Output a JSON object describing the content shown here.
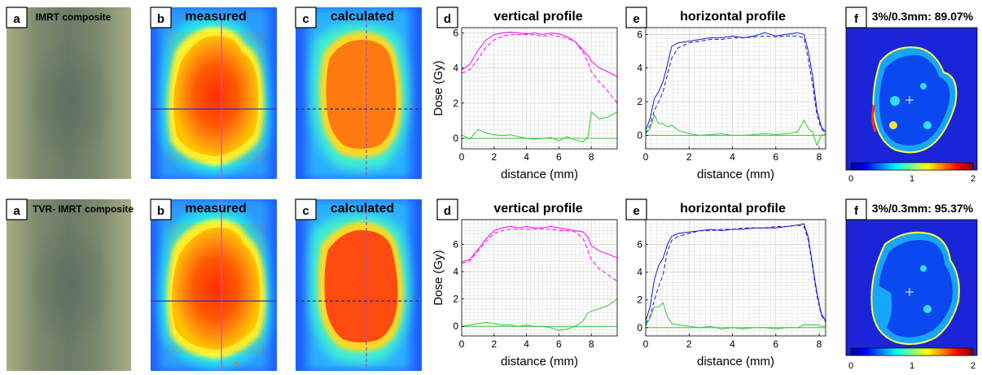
{
  "rows": [
    {
      "panels": {
        "a": {
          "letter": "a",
          "title": "IMRT composite"
        },
        "b": {
          "letter": "b",
          "title": "measured"
        },
        "c": {
          "letter": "c",
          "title": "calculated"
        },
        "d": {
          "letter": "d",
          "title": "vertical profile"
        },
        "e": {
          "letter": "e",
          "title": "horizontal profile"
        },
        "f": {
          "letter": "f",
          "title": "3%/0.3mm: 89.07%"
        }
      }
    },
    {
      "panels": {
        "a": {
          "letter": "a",
          "title": "TVR- IMRT composite"
        },
        "b": {
          "letter": "b",
          "title": "measured"
        },
        "c": {
          "letter": "c",
          "title": "calculated"
        },
        "d": {
          "letter": "d",
          "title": "vertical profile"
        },
        "e": {
          "letter": "e",
          "title": "horizontal profile"
        },
        "f": {
          "letter": "f",
          "title": "3%/0.3mm: 95.37%"
        }
      }
    }
  ],
  "colorbar": {
    "ticks": [
      "0",
      "1",
      "2"
    ]
  },
  "colors": {
    "vertical": "#ff00ff",
    "horizontal": "#1a1acc",
    "difference": "#33cc33"
  },
  "chart_data": [
    {
      "type": "line",
      "title": "vertical profile",
      "xlabel": "distance (mm)",
      "ylabel": "Dose (Gy)",
      "xlim": [
        0,
        9.6
      ],
      "ylim": [
        -0.6,
        6.3
      ],
      "xticks": [
        0,
        2,
        4,
        6,
        8
      ],
      "yticks": [
        0,
        2,
        4,
        6
      ],
      "grid": true,
      "series": [
        {
          "style": "solid",
          "color": "#ff00ff",
          "x": [
            0,
            0.5,
            1,
            1.5,
            2,
            2.5,
            3,
            3.5,
            4,
            4.5,
            5,
            5.5,
            6,
            6.5,
            7,
            7.5,
            7.8,
            8,
            8.5,
            9,
            9.6
          ],
          "y": [
            3.9,
            4.2,
            5.0,
            5.6,
            5.9,
            6.0,
            6.05,
            6.0,
            5.95,
            6.0,
            5.9,
            6.0,
            5.95,
            5.8,
            5.5,
            5.0,
            4.7,
            4.4,
            4.0,
            3.8,
            3.5
          ]
        },
        {
          "style": "dashed",
          "color": "#ff00ff",
          "x": [
            0,
            0.5,
            1,
            1.5,
            2,
            2.5,
            3,
            3.5,
            4,
            4.5,
            5,
            5.5,
            6,
            6.5,
            7,
            7.5,
            7.8,
            8,
            8.5,
            9,
            9.6
          ],
          "y": [
            3.7,
            3.9,
            4.5,
            5.2,
            5.6,
            5.8,
            5.9,
            5.9,
            5.9,
            5.9,
            5.8,
            5.9,
            5.8,
            5.7,
            5.5,
            4.9,
            4.3,
            3.8,
            3.2,
            2.7,
            2.0
          ]
        },
        {
          "style": "solid",
          "color": "#33cc33",
          "x": [
            0,
            0.5,
            1,
            1.5,
            2,
            2.5,
            3,
            3.5,
            4,
            4.5,
            5,
            5.5,
            6,
            6.5,
            7,
            7.5,
            7.8,
            8,
            8.5,
            9,
            9.6
          ],
          "y": [
            0.2,
            -0.05,
            0.5,
            0.3,
            0.2,
            0.15,
            0.2,
            0.1,
            0.0,
            -0.05,
            0.0,
            0.05,
            -0.15,
            0.1,
            -0.1,
            -0.2,
            0.1,
            1.5,
            1.1,
            1.2,
            1.5
          ]
        },
        {
          "style": "solid",
          "color": "#33cc33",
          "x": [
            0,
            9.6
          ],
          "y": [
            0,
            0
          ]
        }
      ]
    },
    {
      "type": "line",
      "title": "horizontal profile",
      "xlabel": "distance (mm)",
      "ylabel": "",
      "xlim": [
        0,
        8.3
      ],
      "ylim": [
        -0.8,
        6.4
      ],
      "xticks": [
        0,
        2,
        4,
        6,
        8
      ],
      "yticks": [
        0,
        2,
        4,
        6
      ],
      "grid": true,
      "series": [
        {
          "style": "solid",
          "color": "#1a1acc",
          "x": [
            0,
            0.2,
            0.4,
            0.6,
            0.8,
            1,
            1.2,
            1.5,
            2,
            2.5,
            3,
            3.5,
            4,
            4.5,
            5,
            5.5,
            6,
            6.5,
            7,
            7.3,
            7.5,
            7.7,
            7.9,
            8.1,
            8.3
          ],
          "y": [
            0.3,
            1.0,
            2.2,
            2.6,
            3.2,
            4.2,
            5.3,
            5.5,
            5.6,
            5.7,
            5.8,
            5.8,
            5.9,
            5.8,
            5.9,
            6.1,
            5.9,
            6.0,
            6.1,
            6.0,
            5.0,
            3.5,
            1.5,
            0.5,
            0.2
          ]
        },
        {
          "style": "dashed",
          "color": "#1a1acc",
          "x": [
            0,
            0.2,
            0.4,
            0.6,
            0.8,
            1,
            1.2,
            1.5,
            2,
            2.5,
            3,
            3.5,
            4,
            4.5,
            5,
            5.5,
            6,
            6.5,
            7,
            7.3,
            7.5,
            7.7,
            7.9,
            8.1,
            8.3
          ],
          "y": [
            0.1,
            0.6,
            1.5,
            2.0,
            2.6,
            3.6,
            4.6,
            5.2,
            5.5,
            5.6,
            5.7,
            5.7,
            5.8,
            5.8,
            5.85,
            5.9,
            5.85,
            5.9,
            5.9,
            5.8,
            4.5,
            3.0,
            1.2,
            0.4,
            0.1
          ]
        },
        {
          "style": "solid",
          "color": "#33cc33",
          "x": [
            0,
            0.2,
            0.4,
            0.6,
            0.8,
            1,
            1.2,
            1.5,
            2,
            2.5,
            3,
            3.5,
            4,
            4.5,
            5,
            5.5,
            6,
            6.5,
            7,
            7.3,
            7.5,
            7.7,
            7.9,
            8.1,
            8.3
          ],
          "y": [
            0.1,
            0.4,
            1.2,
            0.7,
            0.7,
            0.5,
            0.6,
            0.3,
            0.1,
            0.0,
            0.05,
            0.1,
            0.0,
            0.0,
            0.05,
            0.1,
            0.05,
            0.1,
            0.2,
            0.9,
            0.4,
            0.2,
            -0.6,
            0.0,
            0.1
          ]
        },
        {
          "style": "solid",
          "color": "#33cc33",
          "x": [
            0,
            8.3
          ],
          "y": [
            0,
            0
          ]
        }
      ]
    },
    {
      "type": "line",
      "title": "vertical profile",
      "xlabel": "distance (mm)",
      "ylabel": "Dose (Gy)",
      "xlim": [
        0,
        9.6
      ],
      "ylim": [
        -0.7,
        7.8
      ],
      "xticks": [
        0,
        2,
        4,
        6,
        8
      ],
      "yticks": [
        0,
        2,
        4,
        6
      ],
      "grid": true,
      "series": [
        {
          "style": "solid",
          "color": "#ff00ff",
          "x": [
            0,
            0.5,
            1,
            1.5,
            2,
            2.5,
            3,
            3.5,
            4,
            4.5,
            5,
            5.5,
            6,
            6.5,
            7,
            7.5,
            7.8,
            8,
            8.5,
            9,
            9.6
          ],
          "y": [
            4.7,
            4.9,
            5.6,
            6.4,
            7.0,
            7.2,
            7.3,
            7.2,
            7.3,
            7.2,
            7.2,
            7.3,
            7.2,
            7.1,
            7.0,
            6.9,
            6.5,
            5.9,
            5.5,
            5.3,
            5.0
          ]
        },
        {
          "style": "dashed",
          "color": "#ff00ff",
          "x": [
            0,
            0.5,
            1,
            1.5,
            2,
            2.5,
            3,
            3.5,
            4,
            4.5,
            5,
            5.5,
            6,
            6.5,
            7,
            7.5,
            7.8,
            8,
            8.5,
            9,
            9.6
          ],
          "y": [
            4.6,
            4.8,
            5.5,
            6.2,
            6.8,
            7.0,
            7.1,
            7.1,
            7.1,
            7.1,
            7.1,
            7.1,
            7.0,
            7.0,
            6.9,
            6.4,
            5.5,
            4.9,
            4.2,
            3.8,
            3.3
          ]
        },
        {
          "style": "solid",
          "color": "#33cc33",
          "x": [
            0,
            0.5,
            1,
            1.5,
            2,
            2.5,
            3,
            3.5,
            4,
            4.5,
            5,
            5.5,
            6,
            6.5,
            7,
            7.5,
            7.8,
            8,
            8.5,
            9,
            9.6
          ],
          "y": [
            0.0,
            0.1,
            0.2,
            0.3,
            0.2,
            0.1,
            0.1,
            0.0,
            0.1,
            0.0,
            0.0,
            -0.1,
            -0.3,
            -0.2,
            0.0,
            0.4,
            1.0,
            1.1,
            1.3,
            1.5,
            2.0
          ]
        },
        {
          "style": "solid",
          "color": "#33cc33",
          "x": [
            0,
            9.6
          ],
          "y": [
            0,
            0
          ]
        }
      ]
    },
    {
      "type": "line",
      "title": "horizontal profile",
      "xlabel": "distance (mm)",
      "ylabel": "",
      "xlim": [
        0,
        8.3
      ],
      "ylim": [
        -0.6,
        7.8
      ],
      "xticks": [
        0,
        2,
        4,
        6,
        8
      ],
      "yticks": [
        0,
        2,
        4,
        6
      ],
      "grid": true,
      "series": [
        {
          "style": "solid",
          "color": "#1a1acc",
          "x": [
            0,
            0.2,
            0.4,
            0.6,
            0.8,
            1,
            1.2,
            1.5,
            2,
            2.5,
            3,
            3.5,
            4,
            4.5,
            5,
            5.5,
            6,
            6.5,
            7,
            7.3,
            7.5,
            7.7,
            7.9,
            8.1,
            8.3
          ],
          "y": [
            0.5,
            1.5,
            3.5,
            4.5,
            5.0,
            6.0,
            6.6,
            6.8,
            6.9,
            7.0,
            7.1,
            7.0,
            7.1,
            7.1,
            7.2,
            7.2,
            7.2,
            7.3,
            7.4,
            7.5,
            6.5,
            4.5,
            2.5,
            1.0,
            0.5
          ]
        },
        {
          "style": "dashed",
          "color": "#1a1acc",
          "x": [
            0,
            0.2,
            0.4,
            0.6,
            0.8,
            1,
            1.2,
            1.5,
            2,
            2.5,
            3,
            3.5,
            4,
            4.5,
            5,
            5.5,
            6,
            6.5,
            7,
            7.3,
            7.5,
            7.7,
            7.9,
            8.1,
            8.3
          ],
          "y": [
            0.3,
            0.8,
            2.0,
            3.0,
            3.8,
            5.5,
            6.3,
            6.6,
            6.8,
            7.0,
            7.0,
            7.1,
            7.1,
            7.2,
            7.2,
            7.2,
            7.3,
            7.3,
            7.4,
            7.3,
            6.3,
            4.3,
            2.3,
            0.9,
            0.4
          ]
        },
        {
          "style": "solid",
          "color": "#33cc33",
          "x": [
            0,
            0.2,
            0.4,
            0.6,
            0.8,
            1,
            1.2,
            1.5,
            2,
            2.5,
            3,
            3.5,
            4,
            4.5,
            5,
            5.5,
            6,
            6.5,
            7,
            7.3,
            7.5,
            7.7,
            7.9,
            8.1,
            8.3
          ],
          "y": [
            0.1,
            0.7,
            1.5,
            1.5,
            1.8,
            0.8,
            0.3,
            0.2,
            0.1,
            0.0,
            0.1,
            -0.1,
            0.0,
            -0.1,
            0.0,
            0.0,
            -0.1,
            0.0,
            0.0,
            0.2,
            0.2,
            0.2,
            0.2,
            0.1,
            0.1
          ]
        },
        {
          "style": "solid",
          "color": "#33cc33",
          "x": [
            0,
            8.3
          ],
          "y": [
            0,
            0
          ]
        }
      ]
    }
  ]
}
